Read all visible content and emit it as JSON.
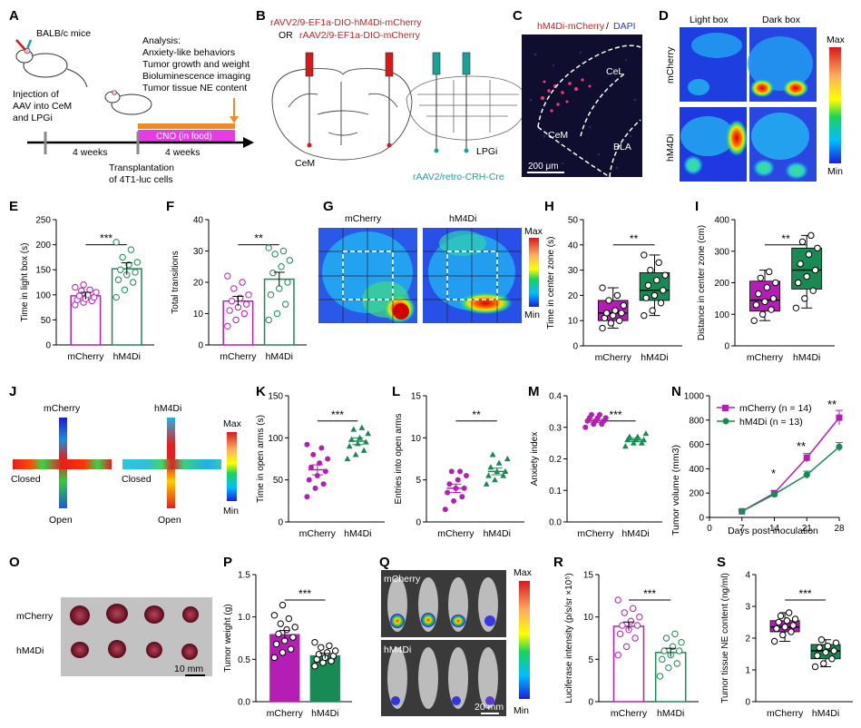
{
  "panel_letters": [
    "A",
    "B",
    "C",
    "D",
    "E",
    "F",
    "G",
    "H",
    "I",
    "J",
    "K",
    "L",
    "M",
    "N",
    "O",
    "P",
    "Q",
    "R",
    "S"
  ],
  "colors": {
    "mcherry": "#b41eb4",
    "hm4di": "#1a8a55",
    "red": "#d7191c",
    "teal": "#18a39a",
    "orange": "#f08a24",
    "cno": "#e63ce6"
  },
  "panelA": {
    "mice_label": "BALB/c mice",
    "injection": [
      "Injection of",
      "AAV into CeM",
      "and LPGi"
    ],
    "analysis": [
      "Analysis:",
      "Anxiety-like behaviors",
      "Tumor growth and weight",
      "Bioluminescence imaging",
      "Tumor tissue NE content"
    ],
    "weeks1": "4 weeks",
    "weeks2": "4 weeks",
    "cno": "CNO (in food)",
    "transplant": [
      "Transplantation",
      "of 4T1-luc cells"
    ]
  },
  "panelB": {
    "virus1": "rAVV2/9-EF1a-DIO-hM4Di-mCherry",
    "or": "OR",
    "virus2": "rAAV2/9-EF1a-DIO-mCherry",
    "cem": "CeM",
    "lpgi": "LPGi",
    "retro": "rAAV2/retro-CRH-Cre"
  },
  "panelC": {
    "title_red": "hM4Di-mCherry",
    "slash": " / ",
    "title_blue": "DAPI",
    "cel": "CeL",
    "cem": "CeM",
    "bla": "BLA",
    "scale": "200 μm"
  },
  "panelD": {
    "col1": "Light box",
    "col2": "Dark box",
    "row1": "mCherry",
    "row2": "hM4Di",
    "max": "Max",
    "min": "Min"
  },
  "panelG": {
    "col1": "mCherry",
    "col2": "hM4Di",
    "max": "Max",
    "min": "Min"
  },
  "panelJ": {
    "row1": "mCherry",
    "row2": "hM4Di",
    "closed": "Closed",
    "open": "Open",
    "max": "Max",
    "min": "Min"
  },
  "panelO": {
    "row1": "mCherry",
    "row2": "hM4Di",
    "scale": "10 mm"
  },
  "panelQ": {
    "row1": "mCherry",
    "row2": "hM4Di",
    "scale": "20 mm",
    "max": "Max",
    "min": "Min"
  },
  "panelN": {
    "title": "Tumor volume",
    "ylabel": "Tumor volume (mm3)",
    "xlabel": "Days post inoculation",
    "xticks": [
      "0",
      "7",
      "14",
      "21",
      "28"
    ],
    "yticks": [
      "0",
      "200",
      "400",
      "600",
      "800",
      "1000"
    ],
    "legend1": "mCherry (n = 14)",
    "legend2": "hM4Di (n = 13)",
    "stars": [
      "*",
      "**",
      "**"
    ]
  },
  "chart_data": [
    {
      "id": "E",
      "type": "bar",
      "ylabel": "Time in light box (s)",
      "categories": [
        "mCherry",
        "hM4Di"
      ],
      "values": [
        98,
        152
      ],
      "errors": [
        7,
        12
      ],
      "ylim": [
        0,
        250
      ],
      "yticks": [
        "0",
        "50",
        "100",
        "150",
        "200",
        "250"
      ],
      "sig": "***",
      "points": [
        [
          80,
          85,
          88,
          90,
          92,
          95,
          98,
          100,
          105,
          108,
          110,
          115,
          120
        ],
        [
          95,
          110,
          125,
          130,
          140,
          145,
          150,
          160,
          165,
          175,
          190,
          205
        ]
      ]
    },
    {
      "id": "F",
      "type": "bar",
      "ylabel": "Total transitions",
      "categories": [
        "mCherry",
        "hM4Di"
      ],
      "values": [
        14,
        21
      ],
      "errors": [
        1.5,
        2.2
      ],
      "ylim": [
        0,
        40
      ],
      "yticks": [
        "0",
        "10",
        "20",
        "30",
        "40"
      ],
      "sig": "**",
      "points": [
        [
          6,
          8,
          10,
          11,
          12,
          13,
          14,
          15,
          16,
          18,
          20,
          22
        ],
        [
          8,
          10,
          13,
          16,
          18,
          20,
          23,
          25,
          27,
          29,
          30,
          31
        ]
      ]
    },
    {
      "id": "H",
      "type": "box",
      "ylabel": "Time in center zone (s)",
      "categories": [
        "mCherry",
        "hM4Di"
      ],
      "ylim": [
        0,
        50
      ],
      "yticks": [
        "0",
        "10",
        "20",
        "30",
        "40",
        "50"
      ],
      "sig": "**",
      "box": [
        {
          "min": 7,
          "q1": 10,
          "median": 13,
          "q3": 18,
          "max": 23
        },
        {
          "min": 12,
          "q1": 18,
          "median": 22,
          "q3": 29,
          "max": 36
        }
      ],
      "points": [
        [
          7,
          9,
          10,
          11,
          12,
          13,
          13,
          14,
          16,
          18,
          20,
          23
        ],
        [
          12,
          14,
          17,
          19,
          20,
          22,
          24,
          26,
          28,
          30,
          33,
          36
        ]
      ]
    },
    {
      "id": "I",
      "type": "box",
      "ylabel": "Distance in center zone (cm)",
      "categories": [
        "mCherry",
        "hM4Di"
      ],
      "ylim": [
        0,
        400
      ],
      "yticks": [
        "0",
        "100",
        "200",
        "300",
        "400"
      ],
      "sig": "**",
      "box": [
        {
          "min": 80,
          "q1": 110,
          "median": 145,
          "q3": 205,
          "max": 240
        },
        {
          "min": 120,
          "q1": 180,
          "median": 240,
          "q3": 310,
          "max": 350
        }
      ],
      "points": [
        [
          80,
          100,
          115,
          130,
          140,
          150,
          165,
          185,
          200,
          215,
          235
        ],
        [
          120,
          150,
          175,
          200,
          220,
          240,
          260,
          290,
          310,
          330,
          350
        ]
      ]
    },
    {
      "id": "K",
      "type": "dot",
      "ylabel": "Time in open arms (s)",
      "categories": [
        "mCherry",
        "hM4Di"
      ],
      "values": [
        62,
        96
      ],
      "errors": [
        6,
        4
      ],
      "ylim": [
        0,
        150
      ],
      "yticks": [
        "0",
        "50",
        "100",
        "150"
      ],
      "sig": "***",
      "points": [
        [
          30,
          40,
          45,
          50,
          55,
          60,
          65,
          70,
          75,
          80,
          88,
          92
        ],
        [
          75,
          80,
          85,
          90,
          93,
          95,
          98,
          100,
          105,
          110,
          112
        ]
      ]
    },
    {
      "id": "L",
      "type": "dot",
      "ylabel": "Entries into open arms",
      "categories": [
        "mCherry",
        "hM4Di"
      ],
      "values": [
        4,
        6
      ],
      "errors": [
        0.5,
        0.4
      ],
      "ylim": [
        0,
        15
      ],
      "yticks": [
        "0",
        "5",
        "10",
        "15"
      ],
      "sig": "**",
      "points": [
        [
          1.5,
          2.5,
          3,
          3.5,
          4,
          4,
          4.5,
          5,
          5.5,
          6,
          6
        ],
        [
          4.5,
          5,
          5.5,
          5.5,
          6,
          6,
          6.5,
          7,
          7.5,
          8
        ]
      ]
    },
    {
      "id": "M",
      "type": "dot",
      "ylabel": "Anxiety index",
      "categories": [
        "mCherry",
        "hM4Di"
      ],
      "values": [
        0.32,
        0.26
      ],
      "errors": [
        0.005,
        0.005
      ],
      "ylim": [
        0,
        0.4
      ],
      "yticks": [
        "0.0",
        "0.1",
        "0.2",
        "0.3",
        "0.4"
      ],
      "sig": "***",
      "points": [
        [
          0.3,
          0.31,
          0.31,
          0.32,
          0.32,
          0.32,
          0.33,
          0.33,
          0.33,
          0.34,
          0.34
        ],
        [
          0.24,
          0.25,
          0.25,
          0.26,
          0.26,
          0.26,
          0.27,
          0.27,
          0.28
        ]
      ]
    },
    {
      "id": "N",
      "type": "line",
      "x": [
        7,
        14,
        21,
        28
      ],
      "series": [
        {
          "name": "mCherry (n = 14)",
          "values": [
            50,
            200,
            490,
            820
          ],
          "errors": [
            8,
            20,
            35,
            60
          ]
        },
        {
          "name": "hM4Di (n = 13)",
          "values": [
            50,
            190,
            350,
            580
          ],
          "errors": [
            8,
            18,
            30,
            35
          ]
        }
      ],
      "xlim": [
        0,
        28
      ],
      "ylim": [
        0,
        1000
      ]
    },
    {
      "id": "P",
      "type": "bar",
      "ylabel": "Tumor weight (g)",
      "categories": [
        "mCherry",
        "hM4Di"
      ],
      "values": [
        0.79,
        0.54
      ],
      "errors": [
        0.05,
        0.03
      ],
      "ylim": [
        0,
        1.5
      ],
      "yticks": [
        "0.0",
        "0.5",
        "1.0",
        "1.5"
      ],
      "sig": "***",
      "fill": true,
      "points": [
        [
          0.52,
          0.58,
          0.62,
          0.68,
          0.72,
          0.76,
          0.8,
          0.85,
          0.88,
          0.92,
          0.98,
          1.02,
          1.14
        ],
        [
          0.42,
          0.46,
          0.48,
          0.5,
          0.52,
          0.54,
          0.56,
          0.58,
          0.6,
          0.64,
          0.66,
          0.7
        ]
      ]
    },
    {
      "id": "R",
      "type": "bar",
      "ylabel": "Luciferase intensity (p/s/sr ×10⁵)",
      "categories": [
        "mCherry",
        "hM4Di"
      ],
      "values": [
        8.9,
        5.8
      ],
      "errors": [
        0.5,
        0.5
      ],
      "ylim": [
        0,
        15
      ],
      "yticks": [
        "0",
        "5",
        "10",
        "15"
      ],
      "sig": "***",
      "points": [
        [
          5.5,
          6.5,
          7.5,
          8,
          8.5,
          9,
          9,
          9.5,
          10,
          10.5,
          11,
          12
        ],
        [
          3,
          4,
          4.5,
          5,
          5.5,
          6,
          6,
          6.5,
          7,
          7.5,
          8
        ]
      ]
    },
    {
      "id": "S",
      "type": "box",
      "ylabel": "Tumor tissue NE content (ng/ml)",
      "categories": [
        "mCherry",
        "hM4Di"
      ],
      "ylim": [
        0,
        4
      ],
      "yticks": [
        "0",
        "1",
        "2",
        "3",
        "4"
      ],
      "sig": "***",
      "box": [
        {
          "min": 1.9,
          "q1": 2.2,
          "median": 2.35,
          "q3": 2.55,
          "max": 2.8
        },
        {
          "min": 1.1,
          "q1": 1.35,
          "median": 1.6,
          "q3": 1.8,
          "max": 1.95
        }
      ],
      "points": [
        [
          1.9,
          2.1,
          2.2,
          2.3,
          2.35,
          2.4,
          2.5,
          2.55,
          2.6,
          2.7,
          2.8
        ],
        [
          1.1,
          1.2,
          1.35,
          1.45,
          1.55,
          1.6,
          1.7,
          1.75,
          1.85,
          1.95
        ]
      ]
    }
  ]
}
